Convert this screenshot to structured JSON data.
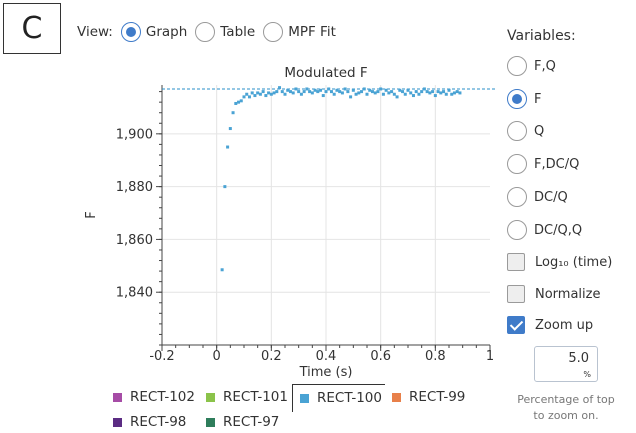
{
  "panel_label": "C",
  "view": {
    "label": "View:",
    "options": [
      {
        "label": "Graph",
        "selected": true
      },
      {
        "label": "Table",
        "selected": false
      },
      {
        "label": "MPF Fit",
        "selected": false
      }
    ]
  },
  "variables": {
    "title": "Variables:",
    "options": [
      {
        "label": "F,Q",
        "selected": false
      },
      {
        "label": "F",
        "selected": true
      },
      {
        "label": "Q",
        "selected": false
      },
      {
        "label": "F,DC/Q",
        "selected": false
      },
      {
        "label": "DC/Q",
        "selected": false
      },
      {
        "label": "DC/Q,Q",
        "selected": false
      }
    ],
    "log_label": "Log₁₀ (time)",
    "log_checked": false,
    "normalize_label": "Normalize",
    "normalize_checked": false,
    "zoom_label": "Zoom up",
    "zoom_checked": true,
    "zoom_value": "5.0",
    "zoom_unit": "%",
    "zoom_caption_line1": "Percentage of top",
    "zoom_caption_line2": "to zoom on."
  },
  "legend": [
    {
      "label": "RECT-102",
      "color": "#a64ca6"
    },
    {
      "label": "RECT-101",
      "color": "#8bc34a"
    },
    {
      "label": "RECT-100",
      "color": "#4aa3d4",
      "selected": true
    },
    {
      "label": "RECT-99",
      "color": "#e8804a"
    },
    {
      "label": "RECT-98",
      "color": "#5b2c83"
    },
    {
      "label": "RECT-97",
      "color": "#2e7d5b"
    }
  ],
  "chart_data": {
    "type": "scatter",
    "title": "Modulated F",
    "xlabel": "Time (s)",
    "ylabel": "F",
    "xlim": [
      -0.2,
      1.0
    ],
    "ylim": [
      1820,
      1918.5
    ],
    "x_ticks": [
      "-0.2",
      "0",
      "0.2",
      "0.4",
      "0.6",
      "0.8",
      "1"
    ],
    "x_tick_values": [
      -0.2,
      0,
      0.2,
      0.4,
      0.6,
      0.8,
      1.0
    ],
    "y_ticks": [
      "1,840",
      "1,860",
      "1,880",
      "1,900"
    ],
    "y_tick_values": [
      1840,
      1860,
      1880,
      1900
    ],
    "grid": true,
    "reference_line": 1917,
    "series": [
      {
        "color": "#4aa3d4",
        "x": [
          0.02,
          0.03,
          0.04,
          0.05,
          0.06,
          0.07,
          0.08,
          0.09,
          0.1,
          0.11,
          0.12,
          0.13,
          0.14,
          0.15,
          0.16,
          0.17,
          0.18,
          0.19,
          0.2,
          0.21,
          0.22,
          0.23,
          0.24,
          0.25,
          0.26,
          0.27,
          0.28,
          0.29,
          0.3,
          0.31,
          0.32,
          0.33,
          0.34,
          0.35,
          0.36,
          0.37,
          0.38,
          0.39,
          0.4,
          0.41,
          0.42,
          0.43,
          0.44,
          0.45,
          0.46,
          0.47,
          0.48,
          0.49,
          0.5,
          0.51,
          0.52,
          0.53,
          0.54,
          0.55,
          0.56,
          0.57,
          0.58,
          0.59,
          0.6,
          0.61,
          0.62,
          0.63,
          0.64,
          0.65,
          0.66,
          0.67,
          0.68,
          0.69,
          0.7,
          0.71,
          0.72,
          0.73,
          0.74,
          0.75,
          0.76,
          0.77,
          0.78,
          0.79,
          0.8,
          0.81,
          0.82,
          0.83,
          0.84,
          0.85,
          0.86,
          0.87,
          0.88,
          0.89
        ],
        "y": [
          1848.5,
          1880,
          1895,
          1902,
          1908,
          1911.5,
          1912,
          1912.5,
          1914,
          1915,
          1914,
          1915.5,
          1914.5,
          1915.5,
          1915,
          1916,
          1914.5,
          1915.5,
          1915,
          1915.5,
          1916,
          1917.5,
          1916,
          1915,
          1916.5,
          1916,
          1915.5,
          1917,
          1916,
          1915,
          1916,
          1917,
          1916,
          1915.5,
          1916.5,
          1916,
          1916.5,
          1914.5,
          1916,
          1917,
          1916,
          1915,
          1916.5,
          1916,
          1915.5,
          1917,
          1916,
          1914,
          1916.5,
          1915,
          1915.5,
          1916,
          1917,
          1915,
          1916.5,
          1916,
          1915.5,
          1916,
          1917,
          1915,
          1916.5,
          1915.5,
          1916,
          1915,
          1914,
          1916.5,
          1916,
          1915,
          1916.5,
          1915.5,
          1914.5,
          1916,
          1915,
          1916,
          1917,
          1916,
          1915.5,
          1916,
          1914.5,
          1916,
          1915.5,
          1916,
          1915,
          1916.5,
          1915,
          1915.5,
          1916,
          1915.5
        ]
      }
    ]
  }
}
